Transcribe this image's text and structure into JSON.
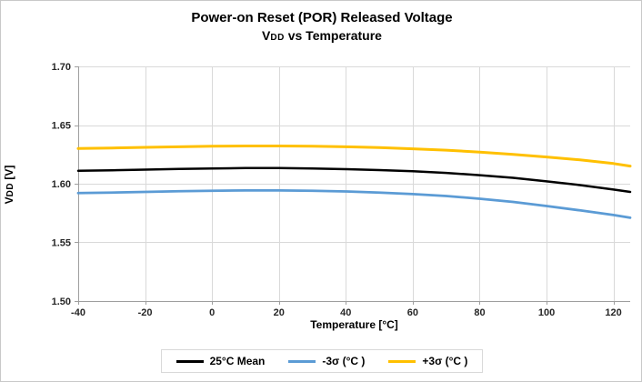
{
  "chart_data": {
    "type": "line",
    "title": "Power-on Reset (POR) Released Voltage",
    "subtitle": {
      "pre": "V",
      "sub": "DD",
      "post": " vs Temperature"
    },
    "ylabel": {
      "pre": "V",
      "sub": "DD",
      "post": " [V]"
    },
    "xlabel": "Temperature [°C]",
    "xlim": [
      -40,
      125
    ],
    "ylim": [
      1.5,
      1.7
    ],
    "xticks": [
      -40,
      -20,
      0,
      20,
      40,
      60,
      80,
      100,
      120
    ],
    "yticks": [
      1.5,
      1.55,
      1.6,
      1.65,
      1.7
    ],
    "ytick_labels": [
      "1.50",
      "1.55",
      "1.60",
      "1.65",
      "1.70"
    ],
    "grid": true,
    "legend_position": "bottom",
    "x": [
      -40,
      -30,
      -20,
      -10,
      0,
      10,
      20,
      30,
      40,
      50,
      60,
      70,
      80,
      90,
      100,
      110,
      120,
      125
    ],
    "series": [
      {
        "name": "25°C Mean",
        "color": "#000000",
        "width": 2.5,
        "values": [
          1.611,
          1.6115,
          1.612,
          1.6126,
          1.613,
          1.6133,
          1.6133,
          1.613,
          1.6124,
          1.6116,
          1.6106,
          1.6092,
          1.6073,
          1.605,
          1.602,
          1.5988,
          1.595,
          1.593
        ]
      },
      {
        "name": "-3σ (°C )",
        "color": "#5b9bd5",
        "width": 2.75,
        "values": [
          1.592,
          1.5925,
          1.593,
          1.5936,
          1.594,
          1.5943,
          1.5943,
          1.594,
          1.5934,
          1.5925,
          1.5912,
          1.5895,
          1.5872,
          1.5845,
          1.581,
          1.5773,
          1.5733,
          1.571
        ]
      },
      {
        "name": "+3σ (°C )",
        "color": "#ffc000",
        "width": 3,
        "values": [
          1.63,
          1.6305,
          1.631,
          1.6315,
          1.632,
          1.6322,
          1.6322,
          1.632,
          1.6315,
          1.6308,
          1.6298,
          1.6286,
          1.627,
          1.625,
          1.6228,
          1.6203,
          1.6172,
          1.615
        ]
      }
    ],
    "colors": {
      "grid": "#d9d9d9",
      "axis": "#9e9e9e",
      "tick_text": "#262626"
    }
  }
}
